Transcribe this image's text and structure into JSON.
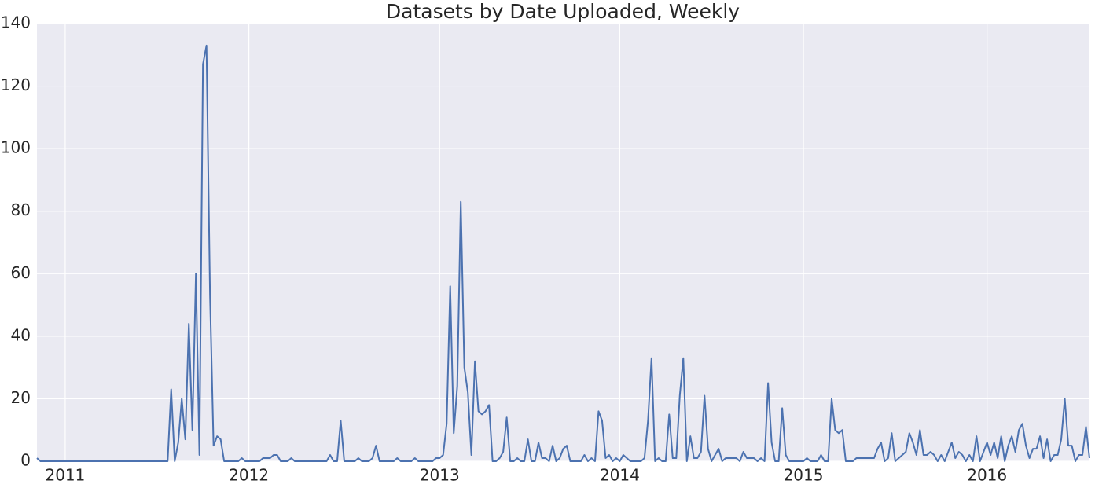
{
  "chart_data": {
    "type": "line",
    "title": "Datasets by Date Uploaded, Weekly",
    "categories": [
      null,
      null,
      null,
      null,
      null,
      null,
      null,
      null,
      "2011",
      null,
      null,
      null,
      null,
      null,
      null,
      null,
      null,
      null,
      null,
      null,
      null,
      null,
      null,
      null,
      null,
      null,
      null,
      null,
      null,
      null,
      null,
      null,
      null,
      null,
      null,
      null,
      null,
      null,
      null,
      null,
      null,
      null,
      null,
      null,
      null,
      null,
      null,
      null,
      null,
      null,
      null,
      null,
      null,
      null,
      null,
      null,
      null,
      null,
      null,
      null,
      "2012",
      null,
      null,
      null,
      null,
      null,
      null,
      null,
      null,
      null,
      null,
      null,
      null,
      null,
      null,
      null,
      null,
      null,
      null,
      null,
      null,
      null,
      null,
      null,
      null,
      null,
      null,
      null,
      null,
      null,
      null,
      null,
      null,
      null,
      null,
      null,
      null,
      null,
      null,
      null,
      null,
      null,
      null,
      null,
      null,
      null,
      null,
      null,
      null,
      null,
      null,
      null,
      null,
      null,
      "2013",
      null,
      null,
      null,
      null,
      null,
      null,
      null,
      null,
      null,
      null,
      null,
      null,
      null,
      null,
      null,
      null,
      null,
      null,
      null,
      null,
      null,
      null,
      null,
      null,
      null,
      null,
      null,
      null,
      null,
      null,
      null,
      null,
      null,
      null,
      null,
      null,
      null,
      null,
      null,
      null,
      null,
      null,
      null,
      null,
      null,
      null,
      null,
      null,
      null,
      null,
      "2014",
      null,
      null,
      null,
      null,
      null,
      null,
      null,
      null,
      null,
      null,
      null,
      null,
      null,
      null,
      null,
      null,
      null,
      null,
      null,
      null,
      null,
      null,
      null,
      null,
      null,
      null,
      null,
      null,
      null,
      null,
      null,
      null,
      null,
      null,
      null,
      null,
      null,
      null,
      null,
      null,
      null,
      null,
      null,
      null,
      null,
      null,
      null,
      null,
      null,
      null,
      null,
      "2015",
      null,
      null,
      null,
      null,
      null,
      null,
      null,
      null,
      null,
      null,
      null,
      null,
      null,
      null,
      null,
      null,
      null,
      null,
      null,
      null,
      null,
      null,
      null,
      null,
      null,
      null,
      null,
      null,
      null,
      null,
      null,
      null,
      null,
      null,
      null,
      null,
      null,
      null,
      null,
      null,
      null,
      null,
      null,
      null,
      null,
      null,
      null,
      null,
      null,
      null,
      null,
      "2016",
      null,
      null,
      null,
      null,
      null,
      null,
      null,
      null,
      null,
      null,
      null,
      null,
      null,
      null,
      null,
      null,
      null,
      null,
      null,
      null,
      null,
      null,
      null,
      null,
      null,
      null,
      null,
      null,
      null
    ],
    "values": [
      1,
      0,
      0,
      0,
      0,
      0,
      0,
      0,
      0,
      0,
      0,
      0,
      0,
      0,
      0,
      0,
      0,
      0,
      0,
      0,
      0,
      0,
      0,
      0,
      0,
      0,
      0,
      0,
      0,
      0,
      0,
      0,
      0,
      0,
      0,
      0,
      0,
      0,
      23,
      0,
      6,
      20,
      7,
      44,
      10,
      60,
      2,
      127,
      133,
      53,
      5,
      8,
      7,
      0,
      0,
      0,
      0,
      0,
      1,
      0,
      0,
      0,
      0,
      0,
      1,
      1,
      1,
      2,
      2,
      0,
      0,
      0,
      1,
      0,
      0,
      0,
      0,
      0,
      0,
      0,
      0,
      0,
      0,
      2,
      0,
      0,
      13,
      0,
      0,
      0,
      0,
      1,
      0,
      0,
      0,
      1,
      5,
      0,
      0,
      0,
      0,
      0,
      1,
      0,
      0,
      0,
      0,
      1,
      0,
      0,
      0,
      0,
      0,
      1,
      1,
      2,
      12,
      56,
      9,
      24,
      83,
      30,
      22,
      2,
      32,
      16,
      15,
      16,
      18,
      0,
      0,
      1,
      3,
      14,
      0,
      0,
      1,
      0,
      0,
      7,
      0,
      0,
      6,
      1,
      1,
      0,
      5,
      0,
      1,
      4,
      5,
      0,
      0,
      0,
      0,
      2,
      0,
      1,
      0,
      16,
      13,
      1,
      2,
      0,
      1,
      0,
      2,
      1,
      0,
      0,
      0,
      0,
      1,
      13,
      33,
      0,
      1,
      0,
      0,
      15,
      1,
      1,
      21,
      33,
      0,
      8,
      1,
      1,
      3,
      21,
      4,
      0,
      2,
      4,
      0,
      1,
      1,
      1,
      1,
      0,
      3,
      1,
      1,
      1,
      0,
      1,
      0,
      25,
      6,
      0,
      0,
      17,
      2,
      0,
      0,
      0,
      0,
      0,
      1,
      0,
      0,
      0,
      2,
      0,
      0,
      20,
      10,
      9,
      10,
      0,
      0,
      0,
      1,
      1,
      1,
      1,
      1,
      1,
      4,
      6,
      0,
      1,
      9,
      0,
      1,
      2,
      3,
      9,
      6,
      2,
      10,
      2,
      2,
      3,
      2,
      0,
      2,
      0,
      3,
      6,
      1,
      3,
      2,
      0,
      2,
      0,
      8,
      0,
      3,
      6,
      2,
      6,
      1,
      8,
      0,
      5,
      8,
      3,
      10,
      12,
      5,
      1,
      4,
      4,
      8,
      1,
      7,
      0,
      2,
      2,
      7,
      20,
      5,
      5,
      0,
      2,
      2,
      11,
      1
    ],
    "color": "#4c72b0",
    "ylim": [
      0,
      140
    ],
    "yticks": [
      0,
      20,
      40,
      60,
      80,
      100,
      120,
      140
    ],
    "grid": true
  }
}
